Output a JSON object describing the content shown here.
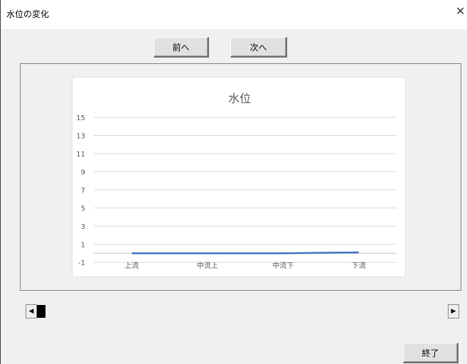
{
  "window": {
    "title": "水位の変化",
    "close_glyph": "✕"
  },
  "buttons": {
    "prev": "前へ",
    "next": "次へ",
    "exit": "終了"
  },
  "scrollbar": {
    "left_arrow": "◀",
    "right_arrow": "▶",
    "position": 0
  },
  "chart_data": {
    "type": "line",
    "title": "水位",
    "categories": [
      "上流",
      "中流上",
      "中流下",
      "下流"
    ],
    "series": [
      {
        "values": [
          0,
          0,
          0,
          0.1
        ],
        "color": "#4472c4"
      }
    ],
    "yticks": [
      15,
      13,
      11,
      9,
      7,
      5,
      3,
      1,
      -1
    ],
    "ylim": [
      -1,
      15
    ],
    "grid": true,
    "legend": "none"
  }
}
